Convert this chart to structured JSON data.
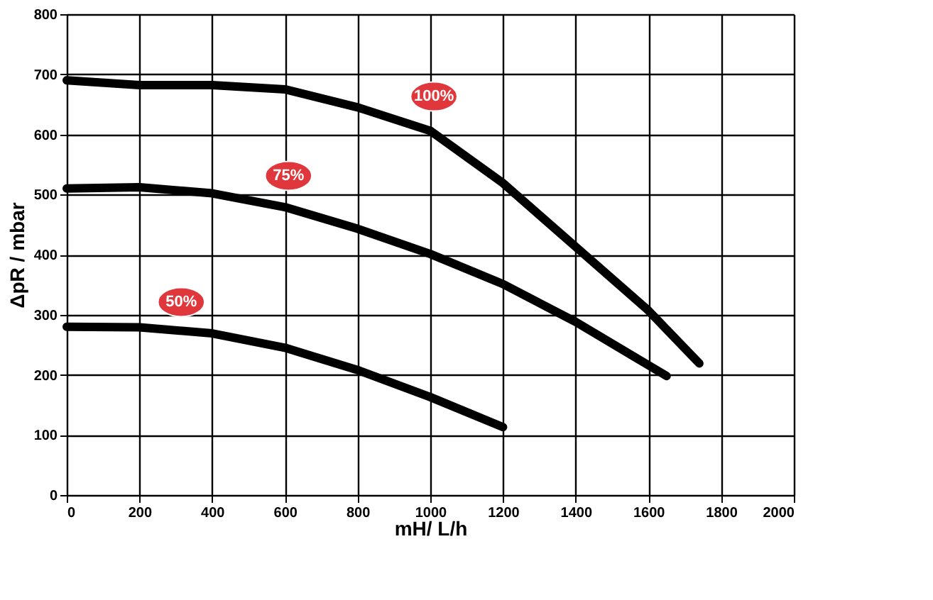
{
  "chart_data": {
    "type": "line",
    "xlabel": "mH/ L/h",
    "ylabel": "ΔpR / mbar",
    "xlim": [
      0,
      2000
    ],
    "xticks": [
      0,
      200,
      400,
      600,
      800,
      1000,
      1200,
      1400,
      1600,
      1800,
      2000
    ],
    "ylim": [
      0,
      800
    ],
    "yticks": [
      0,
      100,
      200,
      300,
      400,
      500,
      600,
      700,
      800
    ],
    "grid": true,
    "legend": false,
    "marker": "none",
    "line_style": "solid",
    "series": [
      {
        "color": "#000000",
        "x": [
          0,
          200,
          400,
          600,
          800,
          1000,
          1200,
          1400,
          1600,
          1740
        ],
        "values": [
          690,
          682,
          682,
          675,
          645,
          606,
          519,
          413,
          307,
          219
        ]
      },
      {
        "color": "#000000",
        "x": [
          0,
          200,
          400,
          600,
          800,
          1000,
          1200,
          1400,
          1650
        ],
        "values": [
          510,
          512,
          502,
          479,
          443,
          401,
          351,
          288,
          198
        ]
      },
      {
        "color": "#000000",
        "x": [
          0,
          200,
          400,
          600,
          800,
          1000,
          1200
        ],
        "values": [
          280,
          279,
          269,
          245,
          208,
          163,
          113
        ]
      }
    ],
    "annotations": [
      {
        "text": "100%",
        "x": 1010,
        "y": 663
      },
      {
        "text": "75%",
        "x": 610,
        "y": 531
      },
      {
        "text": "50%",
        "x": 315,
        "y": 321
      }
    ]
  }
}
